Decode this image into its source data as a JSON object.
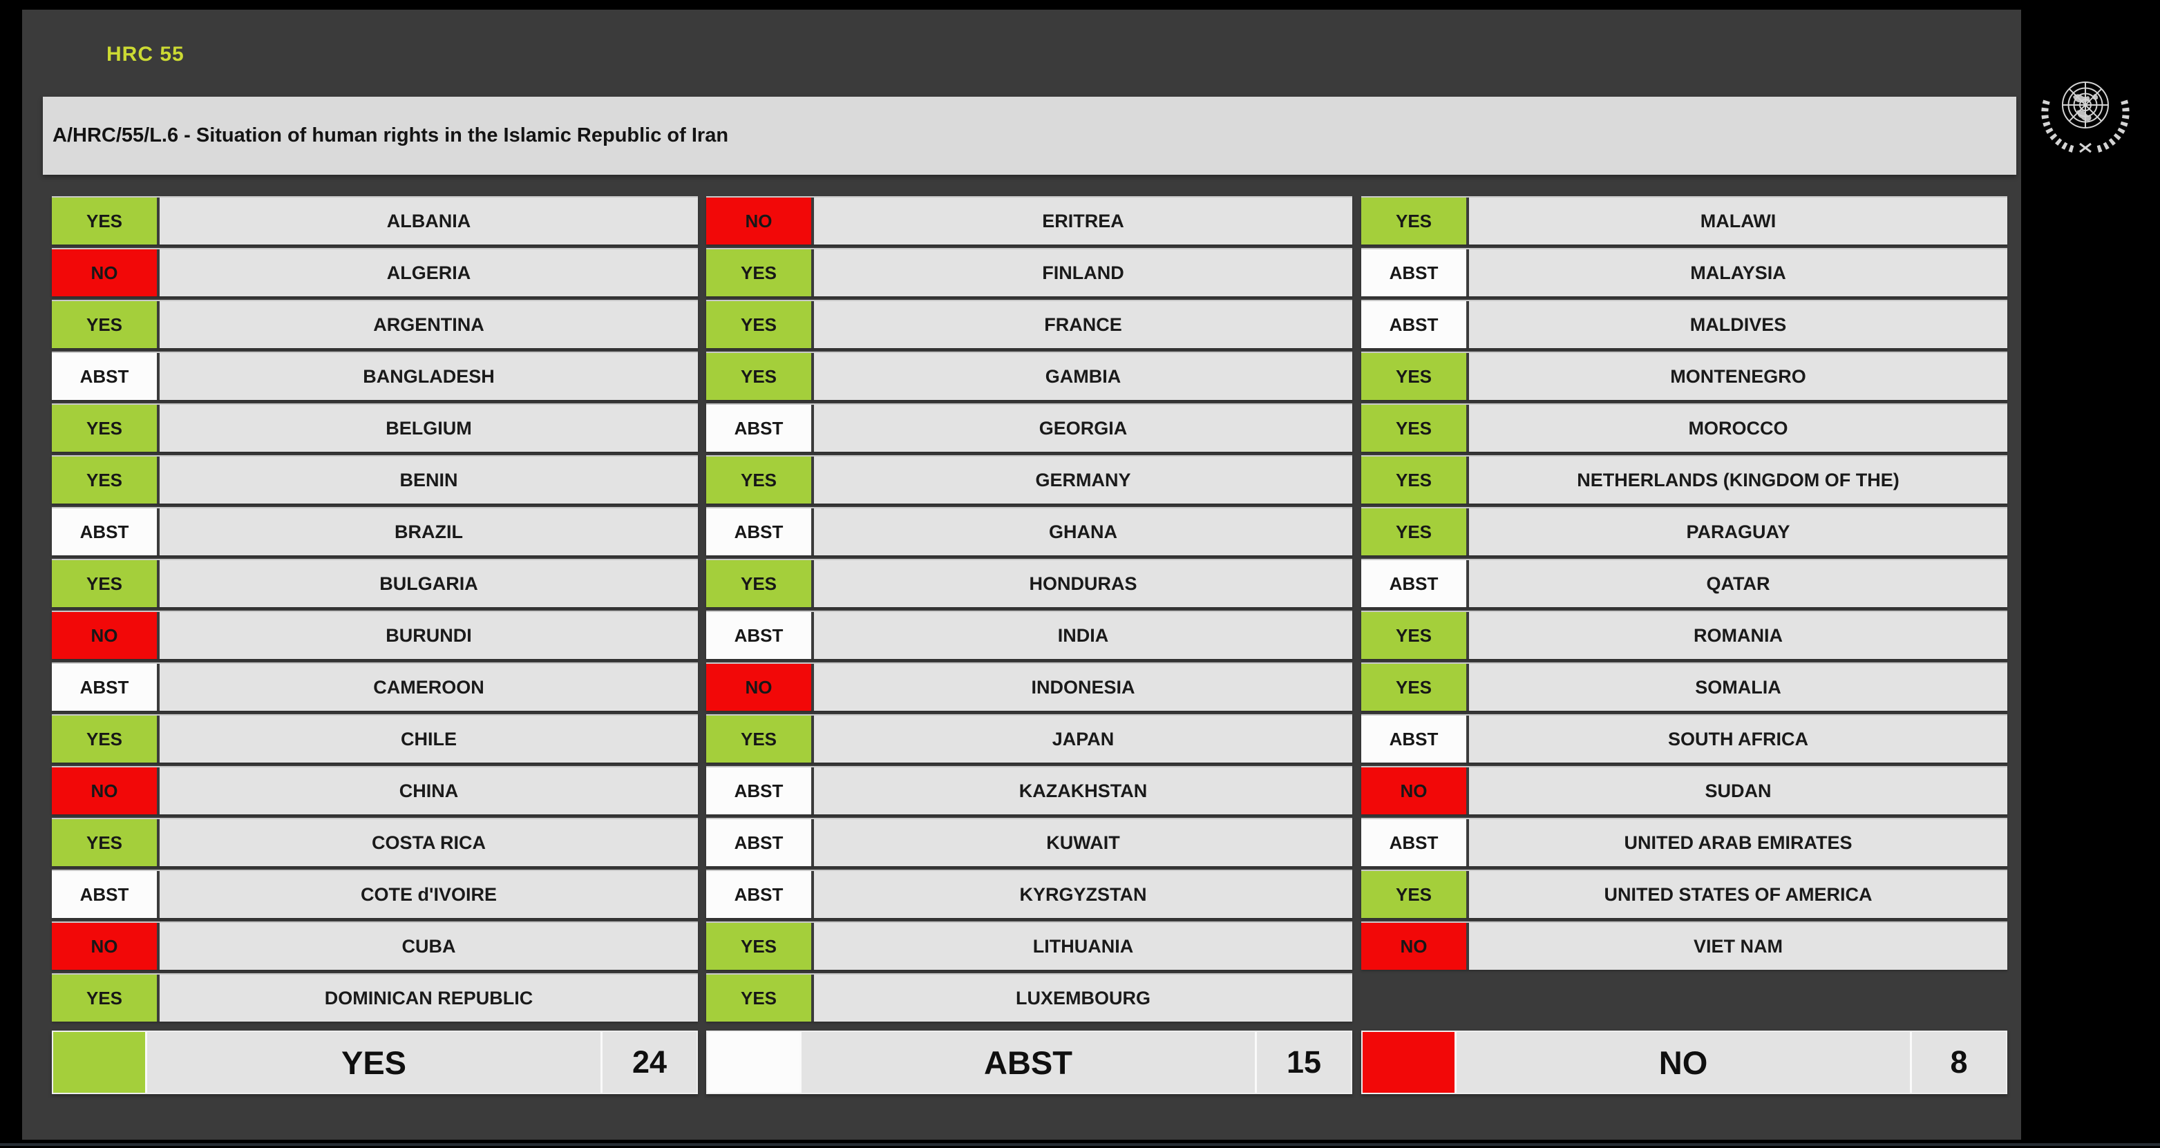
{
  "header": {
    "session": "HRC 55",
    "resolution_title": "A/HRC/55/L.6 - Situation of human rights in the Islamic Republic of Iran"
  },
  "colors": {
    "yes": "#a4cf3b",
    "no": "#f20808",
    "abst": "#fcfcfc",
    "session_text": "#ccda33"
  },
  "columns": [
    [
      {
        "country": "ALBANIA",
        "vote": "YES"
      },
      {
        "country": "ALGERIA",
        "vote": "NO"
      },
      {
        "country": "ARGENTINA",
        "vote": "YES"
      },
      {
        "country": "BANGLADESH",
        "vote": "ABST"
      },
      {
        "country": "BELGIUM",
        "vote": "YES"
      },
      {
        "country": "BENIN",
        "vote": "YES"
      },
      {
        "country": "BRAZIL",
        "vote": "ABST"
      },
      {
        "country": "BULGARIA",
        "vote": "YES"
      },
      {
        "country": "BURUNDI",
        "vote": "NO"
      },
      {
        "country": "CAMEROON",
        "vote": "ABST"
      },
      {
        "country": "CHILE",
        "vote": "YES"
      },
      {
        "country": "CHINA",
        "vote": "NO"
      },
      {
        "country": "COSTA RICA",
        "vote": "YES"
      },
      {
        "country": "COTE d'IVOIRE",
        "vote": "ABST"
      },
      {
        "country": "CUBA",
        "vote": "NO"
      },
      {
        "country": "DOMINICAN REPUBLIC",
        "vote": "YES"
      }
    ],
    [
      {
        "country": "ERITREA",
        "vote": "NO"
      },
      {
        "country": "FINLAND",
        "vote": "YES"
      },
      {
        "country": "FRANCE",
        "vote": "YES"
      },
      {
        "country": "GAMBIA",
        "vote": "YES"
      },
      {
        "country": "GEORGIA",
        "vote": "ABST"
      },
      {
        "country": "GERMANY",
        "vote": "YES"
      },
      {
        "country": "GHANA",
        "vote": "ABST"
      },
      {
        "country": "HONDURAS",
        "vote": "YES"
      },
      {
        "country": "INDIA",
        "vote": "ABST"
      },
      {
        "country": "INDONESIA",
        "vote": "NO"
      },
      {
        "country": "JAPAN",
        "vote": "YES"
      },
      {
        "country": "KAZAKHSTAN",
        "vote": "ABST"
      },
      {
        "country": "KUWAIT",
        "vote": "ABST"
      },
      {
        "country": "KYRGYZSTAN",
        "vote": "ABST"
      },
      {
        "country": "LITHUANIA",
        "vote": "YES"
      },
      {
        "country": "LUXEMBOURG",
        "vote": "YES"
      }
    ],
    [
      {
        "country": "MALAWI",
        "vote": "YES"
      },
      {
        "country": "MALAYSIA",
        "vote": "ABST"
      },
      {
        "country": "MALDIVES",
        "vote": "ABST"
      },
      {
        "country": "MONTENEGRO",
        "vote": "YES"
      },
      {
        "country": "MOROCCO",
        "vote": "YES"
      },
      {
        "country": "NETHERLANDS (KINGDOM OF THE)",
        "vote": "YES"
      },
      {
        "country": "PARAGUAY",
        "vote": "YES"
      },
      {
        "country": "QATAR",
        "vote": "ABST"
      },
      {
        "country": "ROMANIA",
        "vote": "YES"
      },
      {
        "country": "SOMALIA",
        "vote": "YES"
      },
      {
        "country": "SOUTH AFRICA",
        "vote": "ABST"
      },
      {
        "country": "SUDAN",
        "vote": "NO"
      },
      {
        "country": "UNITED ARAB EMIRATES",
        "vote": "ABST"
      },
      {
        "country": "UNITED STATES OF AMERICA",
        "vote": "YES"
      },
      {
        "country": "VIET NAM",
        "vote": "NO"
      }
    ]
  ],
  "summary": [
    {
      "label": "YES",
      "count": "24",
      "type": "yes"
    },
    {
      "label": "ABST",
      "count": "15",
      "type": "abst"
    },
    {
      "label": "NO",
      "count": "8",
      "type": "no"
    }
  ],
  "icons": {
    "un_emblem": "united-nations-emblem"
  }
}
